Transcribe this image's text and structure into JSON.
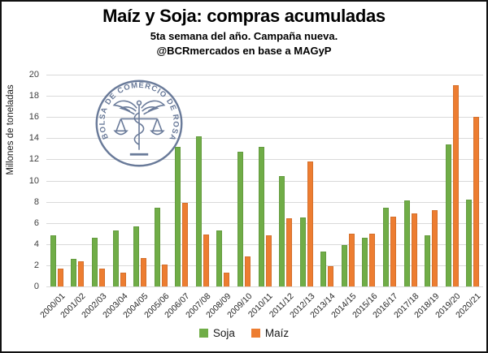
{
  "header": {
    "title": "Maíz y Soja: compras acumuladas",
    "subtitle": "5ta semana del año. Campaña nueva.",
    "source": "@BCRmercados en base a MAGyP"
  },
  "watermark": {
    "text": "BOLSA DE COMERCIO DE ROSARIO",
    "color": "#5d6f91"
  },
  "chart_data": {
    "type": "bar",
    "title": "Maíz y Soja: compras acumuladas",
    "xlabel": "",
    "ylabel": "Millones de toneladas",
    "ylim": [
      0,
      20
    ],
    "ytick_step": 2,
    "grid": true,
    "legend_position": "bottom",
    "categories": [
      "2000/01",
      "2001/02",
      "2002/03",
      "2003/04",
      "2004/05",
      "2005/06",
      "2006/07",
      "2007/08",
      "2008/09",
      "2009/10",
      "2010/11",
      "2011/12",
      "2012/13",
      "2013/14",
      "2014/15",
      "2015/16",
      "2016/17",
      "2017/18",
      "2018/19",
      "2019/20",
      "2020/21"
    ],
    "series": [
      {
        "name": "Soja",
        "color": "#70AD47",
        "values": [
          4.8,
          2.6,
          4.6,
          5.3,
          5.7,
          7.4,
          13.2,
          14.2,
          5.3,
          12.7,
          13.2,
          10.4,
          6.5,
          3.3,
          3.9,
          4.6,
          7.4,
          8.1,
          4.8,
          13.4,
          8.2
        ]
      },
      {
        "name": "Maíz",
        "color": "#ED7D31",
        "values": [
          1.7,
          2.4,
          1.7,
          1.3,
          2.7,
          2.1,
          7.9,
          4.9,
          1.3,
          2.8,
          4.8,
          6.4,
          11.8,
          1.9,
          5.0,
          5.0,
          6.6,
          6.9,
          7.2,
          19.0,
          16.0
        ]
      }
    ],
    "grid_color": "#d9d9d9"
  }
}
